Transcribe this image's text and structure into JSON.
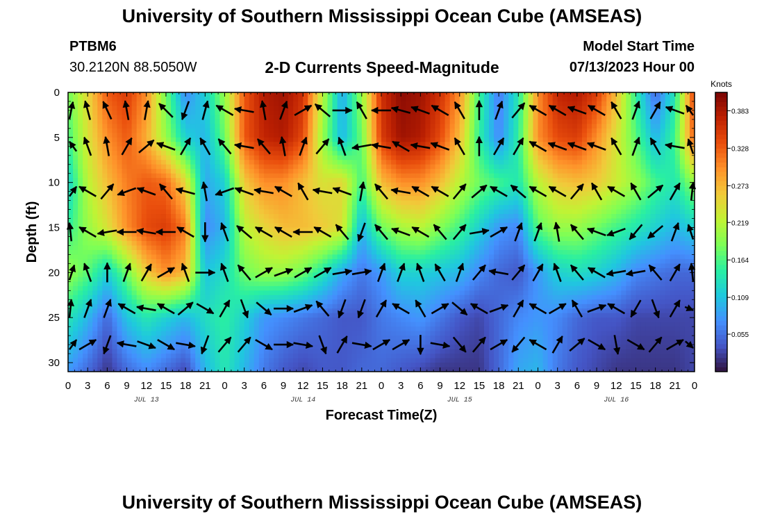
{
  "header": {
    "title": "University of Southern Mississippi Ocean Cube (AMSEAS)",
    "station_name": "PTBM6",
    "station_coords": "30.2120N  88.5050W",
    "chart_title": "2-D Currents Speed-Magnitude",
    "model_start_label": "Model Start Time",
    "model_start_value": "07/13/2023 Hour 00",
    "bottom_title": "University of Southern Mississippi Ocean Cube (AMSEAS)"
  },
  "chart_data": {
    "type": "heatmap",
    "title": "2-D Currents Speed-Magnitude",
    "xlabel": "Forecast Time(Z)",
    "ylabel": "Depth (ft)",
    "xlim": [
      0,
      96
    ],
    "ylim": [
      31,
      0
    ],
    "x_tick_labels": [
      "0",
      "3",
      "6",
      "9",
      "12",
      "15",
      "18",
      "21",
      "0",
      "3",
      "6",
      "9",
      "12",
      "15",
      "18",
      "21",
      "0",
      "3",
      "6",
      "9",
      "12",
      "15",
      "18",
      "21",
      "0",
      "3",
      "6",
      "9",
      "12",
      "15",
      "18",
      "21",
      "0"
    ],
    "y_ticks": [
      0,
      5,
      10,
      15,
      20,
      25,
      30
    ],
    "date_labels": [
      {
        "hour": 12,
        "text": "JUL 13"
      },
      {
        "hour": 36,
        "text": "JUL 14"
      },
      {
        "hour": 60,
        "text": "JUL 15"
      },
      {
        "hour": 84,
        "text": "JUL 16"
      }
    ],
    "colorbar": {
      "unit": "Knots",
      "min": 0.0,
      "max": 0.41,
      "tick_labels": [
        "0.055",
        "0.109",
        "0.164",
        "0.219",
        "0.273",
        "0.328",
        "0.383"
      ],
      "ticks": [
        0.055,
        0.109,
        0.164,
        0.219,
        0.273,
        0.328,
        0.383
      ],
      "colors": [
        "#30123b",
        "#4454c4",
        "#4490fe",
        "#1fc8de",
        "#29efa2",
        "#7dff56",
        "#c1f334",
        "#f1ca3a",
        "#fe922a",
        "#ea4f0d",
        "#be2102",
        "#7a0403"
      ]
    },
    "speed_depths_ft": [
      0,
      5,
      10,
      15,
      20,
      25,
      31
    ],
    "speed_hours": [
      0,
      3,
      6,
      9,
      12,
      15,
      18,
      21,
      24,
      27,
      30,
      33,
      36,
      39,
      42,
      45,
      48,
      51,
      54,
      57,
      60,
      63,
      66,
      69,
      72,
      75,
      78,
      81,
      84,
      87,
      90,
      93,
      96
    ],
    "speed_knots": [
      [
        0.18,
        0.25,
        0.33,
        0.35,
        0.3,
        0.18,
        0.07,
        0.12,
        0.2,
        0.33,
        0.38,
        0.39,
        0.36,
        0.22,
        0.09,
        0.2,
        0.36,
        0.4,
        0.39,
        0.36,
        0.3,
        0.16,
        0.06,
        0.14,
        0.3,
        0.37,
        0.38,
        0.35,
        0.27,
        0.15,
        0.05,
        0.14,
        0.35
      ],
      [
        0.16,
        0.24,
        0.3,
        0.33,
        0.28,
        0.2,
        0.12,
        0.1,
        0.18,
        0.33,
        0.37,
        0.38,
        0.34,
        0.2,
        0.1,
        0.18,
        0.35,
        0.39,
        0.38,
        0.34,
        0.27,
        0.15,
        0.07,
        0.15,
        0.3,
        0.34,
        0.35,
        0.3,
        0.24,
        0.17,
        0.1,
        0.16,
        0.33
      ],
      [
        0.12,
        0.22,
        0.27,
        0.31,
        0.33,
        0.32,
        0.25,
        0.09,
        0.12,
        0.26,
        0.3,
        0.3,
        0.27,
        0.24,
        0.25,
        0.16,
        0.27,
        0.3,
        0.3,
        0.27,
        0.22,
        0.18,
        0.16,
        0.14,
        0.22,
        0.26,
        0.27,
        0.26,
        0.23,
        0.2,
        0.16,
        0.14,
        0.2
      ],
      [
        0.15,
        0.2,
        0.24,
        0.3,
        0.34,
        0.35,
        0.31,
        0.07,
        0.1,
        0.22,
        0.25,
        0.27,
        0.27,
        0.26,
        0.24,
        0.1,
        0.18,
        0.21,
        0.22,
        0.19,
        0.16,
        0.12,
        0.08,
        0.07,
        0.17,
        0.2,
        0.2,
        0.18,
        0.16,
        0.14,
        0.12,
        0.1,
        0.12
      ],
      [
        0.2,
        0.17,
        0.12,
        0.18,
        0.26,
        0.3,
        0.27,
        0.11,
        0.13,
        0.18,
        0.2,
        0.2,
        0.18,
        0.14,
        0.09,
        0.06,
        0.08,
        0.12,
        0.12,
        0.11,
        0.1,
        0.07,
        0.05,
        0.04,
        0.08,
        0.12,
        0.13,
        0.12,
        0.1,
        0.07,
        0.06,
        0.05,
        0.05
      ],
      [
        0.14,
        0.1,
        0.05,
        0.11,
        0.14,
        0.12,
        0.1,
        0.13,
        0.15,
        0.12,
        0.08,
        0.07,
        0.06,
        0.05,
        0.04,
        0.04,
        0.06,
        0.07,
        0.08,
        0.06,
        0.04,
        0.03,
        0.05,
        0.07,
        0.08,
        0.07,
        0.05,
        0.04,
        0.04,
        0.03,
        0.03,
        0.03,
        0.03
      ],
      [
        0.08,
        0.05,
        0.02,
        0.05,
        0.07,
        0.05,
        0.03,
        0.1,
        0.14,
        0.1,
        0.06,
        0.04,
        0.03,
        0.04,
        0.04,
        0.05,
        0.05,
        0.04,
        0.03,
        0.02,
        0.02,
        0.02,
        0.05,
        0.09,
        0.1,
        0.06,
        0.04,
        0.03,
        0.02,
        0.02,
        0.02,
        0.02,
        0.03
      ]
    ],
    "vector_hours": [
      0,
      3,
      6,
      9,
      12,
      15,
      18,
      21,
      24,
      27,
      30,
      33,
      36,
      39,
      42,
      45,
      48,
      51,
      54,
      57,
      60,
      63,
      66,
      69,
      72,
      75,
      78,
      81,
      84,
      87,
      90,
      93,
      96
    ],
    "vector_depths_ft": [
      2,
      6,
      11,
      15.5,
      20,
      24,
      28
    ],
    "vector_directions_deg": [
      [
        30,
        345,
        335,
        350,
        10,
        315,
        200,
        15,
        300,
        280,
        350,
        20,
        60,
        310,
        90,
        330,
        270,
        285,
        290,
        300,
        330,
        0,
        20,
        40,
        300,
        300,
        290,
        300,
        330,
        20,
        30,
        290,
        300
      ],
      [
        300,
        340,
        350,
        30,
        50,
        290,
        30,
        330,
        320,
        280,
        320,
        350,
        20,
        40,
        340,
        260,
        280,
        300,
        280,
        290,
        330,
        0,
        30,
        30,
        300,
        290,
        290,
        290,
        330,
        20,
        330,
        280,
        320
      ],
      [
        60,
        300,
        40,
        250,
        290,
        320,
        285,
        350,
        250,
        290,
        280,
        300,
        330,
        280,
        290,
        10,
        320,
        280,
        300,
        300,
        40,
        50,
        300,
        310,
        300,
        300,
        40,
        330,
        300,
        330,
        50,
        30,
        20
      ],
      [
        340,
        300,
        260,
        270,
        280,
        270,
        300,
        180,
        340,
        310,
        300,
        300,
        270,
        300,
        320,
        200,
        320,
        290,
        300,
        320,
        40,
        80,
        60,
        20,
        20,
        350,
        320,
        290,
        250,
        220,
        230,
        20,
        320
      ],
      [
        40,
        340,
        0,
        20,
        30,
        60,
        340,
        90,
        340,
        320,
        60,
        70,
        60,
        60,
        80,
        80,
        20,
        20,
        340,
        330,
        20,
        40,
        280,
        40,
        30,
        340,
        320,
        300,
        260,
        260,
        320,
        30,
        340
      ],
      [
        20,
        20,
        20,
        300,
        280,
        300,
        50,
        120,
        30,
        160,
        130,
        90,
        70,
        320,
        200,
        200,
        30,
        300,
        330,
        60,
        130,
        300,
        70,
        30,
        300,
        60,
        330,
        70,
        300,
        210,
        160,
        30,
        100
      ],
      [
        60,
        60,
        200,
        280,
        110,
        120,
        100,
        200,
        40,
        40,
        120,
        90,
        100,
        160,
        30,
        100,
        60,
        60,
        180,
        100,
        140,
        40,
        60,
        220,
        300,
        30,
        50,
        120,
        170,
        120,
        40,
        60,
        110
      ]
    ]
  }
}
